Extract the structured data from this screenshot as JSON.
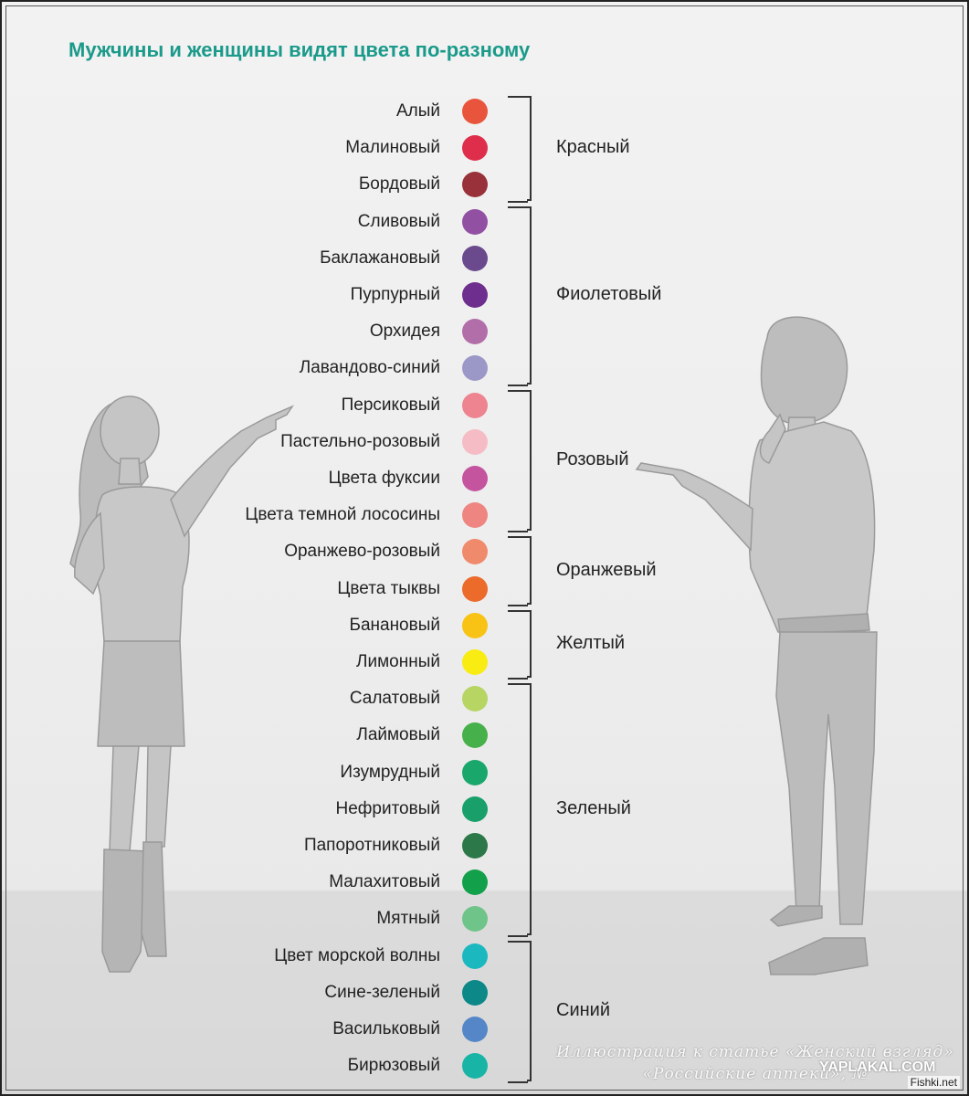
{
  "title": "Мужчины и женщины видят цвета по-разному",
  "shades": [
    {
      "name": "Алый",
      "color": "#e9553c"
    },
    {
      "name": "Малиновый",
      "color": "#df2e4b"
    },
    {
      "name": "Бордовый",
      "color": "#98313a"
    },
    {
      "name": "Сливовый",
      "color": "#9250a3"
    },
    {
      "name": "Баклажановый",
      "color": "#6a4a8d"
    },
    {
      "name": "Пурпурный",
      "color": "#6e2e8e"
    },
    {
      "name": "Орхидея",
      "color": "#b26ea8"
    },
    {
      "name": "Лавандово-синий",
      "color": "#9b98c7"
    },
    {
      "name": "Персиковый",
      "color": "#ed8490"
    },
    {
      "name": "Пастельно-розовый",
      "color": "#f6bcc5"
    },
    {
      "name": "Цвета фуксии",
      "color": "#c5549f"
    },
    {
      "name": "Цвета темной лососины",
      "color": "#ee8580"
    },
    {
      "name": "Оранжево-розовый",
      "color": "#f08a6c"
    },
    {
      "name": "Цвета тыквы",
      "color": "#ec6a2a"
    },
    {
      "name": "Банановый",
      "color": "#f8c315"
    },
    {
      "name": "Лимонный",
      "color": "#f8ec12"
    },
    {
      "name": "Салатовый",
      "color": "#b6d563"
    },
    {
      "name": "Лаймовый",
      "color": "#46b04a"
    },
    {
      "name": "Изумрудный",
      "color": "#1aa76b"
    },
    {
      "name": "Нефритовый",
      "color": "#19a06a"
    },
    {
      "name": "Папоротниковый",
      "color": "#2d7848"
    },
    {
      "name": "Малахитовый",
      "color": "#13a04a"
    },
    {
      "name": "Мятный",
      "color": "#6fc489"
    },
    {
      "name": "Цвет морской волны",
      "color": "#1cb8c0"
    },
    {
      "name": "Сине-зеленый",
      "color": "#0b8887"
    },
    {
      "name": "Васильковый",
      "color": "#5587c8"
    },
    {
      "name": "Бирюзовый",
      "color": "#18b5a6"
    }
  ],
  "groups": [
    {
      "label": "Красный",
      "first": 0,
      "last": 2
    },
    {
      "label": "Фиолетовый",
      "first": 3,
      "last": 7
    },
    {
      "label": "Розовый",
      "first": 8,
      "last": 11
    },
    {
      "label": "Оранжевый",
      "first": 12,
      "last": 13
    },
    {
      "label": "Желтый",
      "first": 14,
      "last": 15
    },
    {
      "label": "Зеленый",
      "first": 16,
      "last": 22
    },
    {
      "label": "Синий",
      "first": 23,
      "last": 26
    }
  ],
  "caption": "Иллюстрация к статье «Женский взгляд» «Российские аптеки», №",
  "watermark_site": "YAPLAKAL.COM",
  "watermark_fishki": "Fishki.net",
  "figures": {
    "woman": "woman-silhouette",
    "man": "man-silhouette"
  }
}
